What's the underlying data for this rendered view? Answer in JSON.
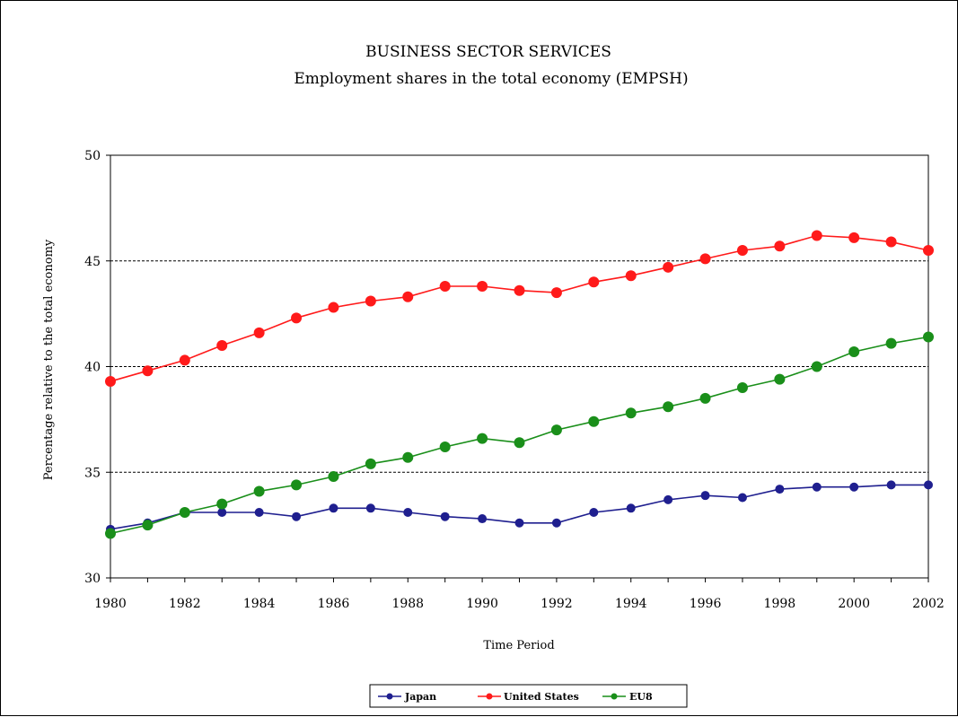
{
  "chart_data": {
    "type": "line",
    "title": "BUSINESS SECTOR SERVICES",
    "subtitle": "Employment shares in the total economy (EMPSH)",
    "xlabel": "Time Period",
    "ylabel": "Percentage relative to the total economy",
    "xlim": [
      1980,
      2002
    ],
    "ylim": [
      30,
      50
    ],
    "x_ticks": [
      "1980",
      "1982",
      "1984",
      "1986",
      "1988",
      "1990",
      "1992",
      "1994",
      "1996",
      "1998",
      "2000",
      "2002"
    ],
    "y_ticks": [
      "30",
      "35",
      "40",
      "45",
      "50"
    ],
    "gridlines": [
      35,
      40,
      45
    ],
    "legend_position": "bottom",
    "x": [
      1980,
      1981,
      1982,
      1983,
      1984,
      1985,
      1986,
      1987,
      1988,
      1989,
      1990,
      1991,
      1992,
      1993,
      1994,
      1995,
      1996,
      1997,
      1998,
      1999,
      2000,
      2001,
      2002
    ],
    "series": [
      {
        "name": "Japan",
        "color": "#1f1f8f",
        "values": [
          32.3,
          32.6,
          33.1,
          33.1,
          33.1,
          32.9,
          33.3,
          33.3,
          33.1,
          32.9,
          32.8,
          32.6,
          32.6,
          33.1,
          33.3,
          33.7,
          33.9,
          33.8,
          34.2,
          34.3,
          34.3,
          34.4,
          34.4
        ]
      },
      {
        "name": "United States",
        "color": "#ff1a1a",
        "values": [
          39.3,
          39.8,
          40.3,
          41.0,
          41.6,
          42.3,
          42.8,
          43.1,
          43.3,
          43.8,
          43.8,
          43.6,
          43.5,
          44.0,
          44.3,
          44.7,
          45.1,
          45.5,
          45.7,
          46.2,
          46.1,
          45.9,
          45.5
        ]
      },
      {
        "name": "EU8",
        "color": "#1a8f1a",
        "values": [
          32.1,
          32.5,
          33.1,
          33.5,
          34.1,
          34.4,
          34.8,
          35.4,
          35.7,
          36.2,
          36.6,
          36.4,
          37.0,
          37.4,
          37.8,
          38.1,
          38.5,
          39.0,
          39.4,
          40.0,
          40.7,
          41.1,
          41.4
        ]
      }
    ]
  }
}
